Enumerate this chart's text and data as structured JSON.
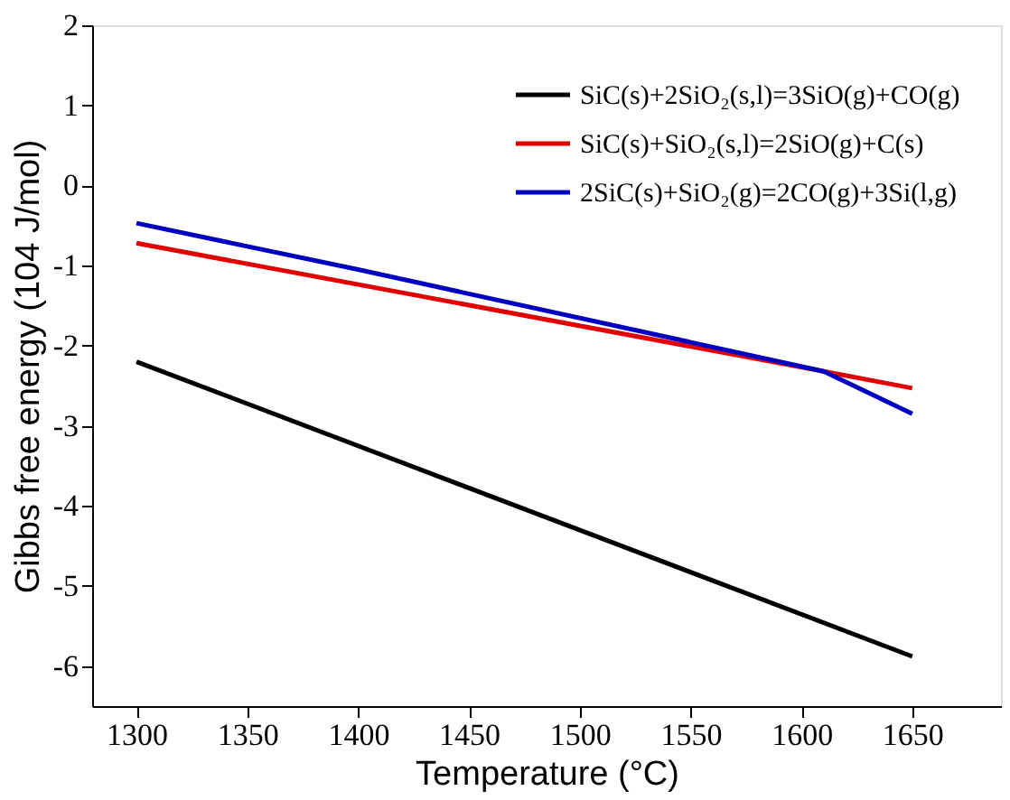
{
  "chart_data": {
    "type": "line",
    "xlabel": "Temperature (°C)",
    "ylabel": "Gibbs free energy (104 J/mol)",
    "xlim": [
      1280,
      1690
    ],
    "xticks": [
      1300,
      1350,
      1400,
      1450,
      1500,
      1550,
      1600,
      1650
    ],
    "ylim": [
      -6.5,
      2
    ],
    "yticks": [
      -6,
      -5,
      -4,
      -3,
      -2,
      -1,
      0,
      1,
      2
    ],
    "grid": false,
    "legend": "top right",
    "marker": "none",
    "line_style": "solid",
    "series": [
      {
        "name": "SiC(s)+2SiO₂(s,l)=3SiO(g)+CO(g)",
        "color": "#000000",
        "x": [
          1300,
          1650
        ],
        "values": [
          -2.2,
          -5.88
        ]
      },
      {
        "name": "SiC(s)+SiO₂(s,l)=2SiO(g)+C(s)",
        "color": "#e00000",
        "x": [
          1300,
          1610,
          1650
        ],
        "values": [
          -0.72,
          -2.32,
          -2.53
        ]
      },
      {
        "name": "2SiC(s)+SiO₂(g)=2CO(g)+3Si(l,g)",
        "color": "#0000c0",
        "x": [
          1300,
          1400,
          1610,
          1650
        ],
        "values": [
          -0.47,
          -1.05,
          -2.32,
          -2.85
        ]
      }
    ]
  }
}
